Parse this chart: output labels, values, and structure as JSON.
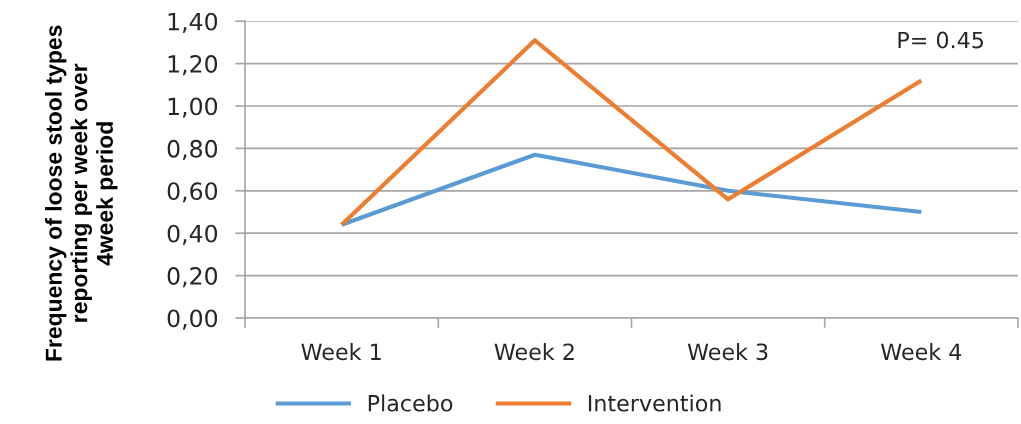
{
  "chart_data": {
    "type": "line",
    "ylabel": "Frequency of loose stool types\nreporting per week over\n4week period",
    "categories": [
      "Week 1",
      "Week 2",
      "Week 3",
      "Week 4"
    ],
    "series": [
      {
        "name": "Placebo",
        "color": "#5b9bd5",
        "values": [
          0.44,
          0.77,
          0.6,
          0.5
        ]
      },
      {
        "name": "Intervention",
        "color": "#ed7d31",
        "values": [
          0.44,
          1.31,
          0.56,
          1.12
        ]
      }
    ],
    "ylim": [
      0,
      1.4
    ],
    "yticks": [
      {
        "value": 0,
        "label": "0,00"
      },
      {
        "value": 0.2,
        "label": "0,20"
      },
      {
        "value": 0.4,
        "label": "0,40"
      },
      {
        "value": 0.6,
        "label": "0,60"
      },
      {
        "value": 0.8,
        "label": "0,80"
      },
      {
        "value": 1.0,
        "label": "1,00"
      },
      {
        "value": 1.2,
        "label": "1,20"
      },
      {
        "value": 1.4,
        "label": "1,40"
      }
    ],
    "grid": "y",
    "legend": "bottom",
    "marker": "none",
    "line_style": "solid",
    "annotations": [
      "P= 0.45"
    ]
  }
}
